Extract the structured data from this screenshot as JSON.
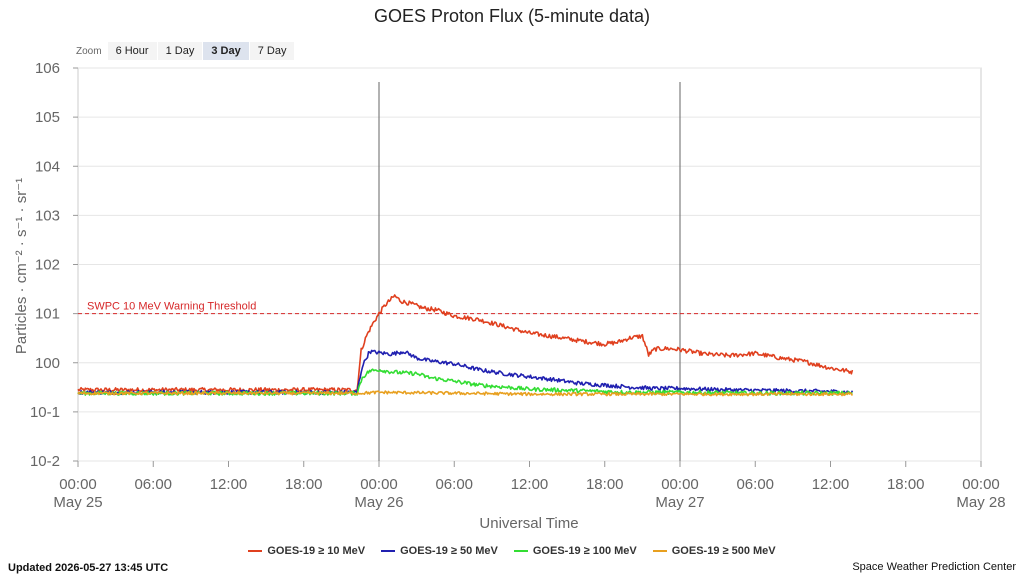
{
  "title": "GOES Proton Flux (5-minute data)",
  "zoom": {
    "label": "Zoom",
    "options": [
      "6 Hour",
      "1 Day",
      "3 Day",
      "7 Day"
    ],
    "selected": "3 Day"
  },
  "footer": {
    "updated": "Updated 2026-05-27 13:45 UTC",
    "credit": "Space Weather Prediction Center"
  },
  "chart_data": {
    "type": "line",
    "title": "GOES Proton Flux (5-minute data)",
    "xlabel": "Universal Time",
    "ylabel": "Particles · cm⁻² · s⁻¹ · sr⁻¹",
    "yscale": "log",
    "ylim": [
      0.01,
      1000000
    ],
    "y_ticks": [
      {
        "value": 1000000,
        "base": "10",
        "exp": "6"
      },
      {
        "value": 100000,
        "base": "10",
        "exp": "5"
      },
      {
        "value": 10000,
        "base": "10",
        "exp": "4"
      },
      {
        "value": 1000,
        "base": "10",
        "exp": "3"
      },
      {
        "value": 100,
        "base": "10",
        "exp": "2"
      },
      {
        "value": 10,
        "base": "10",
        "exp": "1"
      },
      {
        "value": 1,
        "base": "10",
        "exp": "0"
      },
      {
        "value": 0.1,
        "base": "10",
        "exp": "-1"
      },
      {
        "value": 0.01,
        "base": "10",
        "exp": "-2"
      }
    ],
    "xlim": [
      "2026-05-25 00:00",
      "2026-05-28 00:00"
    ],
    "x_ticks": [
      {
        "time": "2026-05-25 00:00",
        "label": "00:00",
        "date": "May 25"
      },
      {
        "time": "2026-05-25 06:00",
        "label": "06:00",
        "date": ""
      },
      {
        "time": "2026-05-25 12:00",
        "label": "12:00",
        "date": ""
      },
      {
        "time": "2026-05-25 18:00",
        "label": "18:00",
        "date": ""
      },
      {
        "time": "2026-05-26 00:00",
        "label": "00:00",
        "date": "May 26"
      },
      {
        "time": "2026-05-26 06:00",
        "label": "06:00",
        "date": ""
      },
      {
        "time": "2026-05-26 12:00",
        "label": "12:00",
        "date": ""
      },
      {
        "time": "2026-05-26 18:00",
        "label": "18:00",
        "date": ""
      },
      {
        "time": "2026-05-27 00:00",
        "label": "00:00",
        "date": "May 27"
      },
      {
        "time": "2026-05-27 06:00",
        "label": "06:00",
        "date": ""
      },
      {
        "time": "2026-05-27 12:00",
        "label": "12:00",
        "date": ""
      },
      {
        "time": "2026-05-27 18:00",
        "label": "18:00",
        "date": ""
      },
      {
        "time": "2026-05-28 00:00",
        "label": "00:00",
        "date": "May 28"
      }
    ],
    "day_lines": [
      "2026-05-26 00:00",
      "2026-05-27 00:00"
    ],
    "threshold": {
      "label": "SWPC 10 MeV Warning Threshold",
      "value": 10,
      "color": "#d62728"
    },
    "grid": true,
    "legend_position": "bottom",
    "series": [
      {
        "name": "GOES-19 ≥ 10 MeV",
        "color": "#e0401f",
        "noise": 0.045,
        "x": [
          "2026-05-25 00:00",
          "2026-05-25 22:15",
          "2026-05-25 22:35",
          "2026-05-25 23:00",
          "2026-05-25 23:30",
          "2026-05-26 00:00",
          "2026-05-26 00:30",
          "2026-05-26 01:00",
          "2026-05-26 01:15",
          "2026-05-26 01:45",
          "2026-05-26 02:30",
          "2026-05-26 03:30",
          "2026-05-26 04:30",
          "2026-05-26 06:00",
          "2026-05-26 08:00",
          "2026-05-26 10:00",
          "2026-05-26 12:00",
          "2026-05-26 14:00",
          "2026-05-26 16:00",
          "2026-05-26 18:00",
          "2026-05-26 19:00",
          "2026-05-26 20:00",
          "2026-05-26 21:00",
          "2026-05-26 21:30",
          "2026-05-26 22:00",
          "2026-05-26 23:00",
          "2026-05-27 00:00",
          "2026-05-27 02:00",
          "2026-05-27 04:00",
          "2026-05-27 06:00",
          "2026-05-27 08:00",
          "2026-05-27 10:00",
          "2026-05-27 12:00",
          "2026-05-27 13:45"
        ],
        "values": [
          0.28,
          0.28,
          1.8,
          3.5,
          6.2,
          10,
          15,
          20,
          23,
          18,
          16,
          13,
          12,
          9,
          7.5,
          5.5,
          4,
          3.4,
          2.8,
          2.4,
          2.6,
          3.2,
          3.5,
          1.45,
          1.9,
          1.95,
          1.85,
          1.5,
          1.4,
          1.55,
          1.25,
          1.05,
          0.78,
          0.65
        ]
      },
      {
        "name": "GOES-19 ≥ 50 MeV",
        "color": "#2020b0",
        "noise": 0.04,
        "x": [
          "2026-05-25 00:00",
          "2026-05-25 22:15",
          "2026-05-25 22:40",
          "2026-05-25 23:15",
          "2026-05-26 00:00",
          "2026-05-26 01:00",
          "2026-05-26 02:00",
          "2026-05-26 03:00",
          "2026-05-26 04:00",
          "2026-05-26 06:00",
          "2026-05-26 08:00",
          "2026-05-26 10:00",
          "2026-05-26 12:00",
          "2026-05-26 14:00",
          "2026-05-26 16:00",
          "2026-05-26 18:00",
          "2026-05-26 20:00",
          "2026-05-26 22:00",
          "2026-05-27 00:00",
          "2026-05-27 04:00",
          "2026-05-27 08:00",
          "2026-05-27 12:00",
          "2026-05-27 13:45"
        ],
        "values": [
          0.25,
          0.25,
          0.85,
          1.7,
          1.6,
          1.5,
          1.7,
          1.25,
          1.1,
          0.95,
          0.72,
          0.6,
          0.52,
          0.45,
          0.38,
          0.35,
          0.32,
          0.3,
          0.3,
          0.28,
          0.27,
          0.26,
          0.25
        ]
      },
      {
        "name": "GOES-19 ≥ 100 MeV",
        "color": "#33dd33",
        "noise": 0.04,
        "x": [
          "2026-05-25 00:00",
          "2026-05-25 22:15",
          "2026-05-25 22:40",
          "2026-05-25 23:15",
          "2026-05-26 00:00",
          "2026-05-26 01:00",
          "2026-05-26 02:00",
          "2026-05-26 03:00",
          "2026-05-26 04:00",
          "2026-05-26 06:00",
          "2026-05-26 08:00",
          "2026-05-26 10:00",
          "2026-05-26 12:00",
          "2026-05-26 16:00",
          "2026-05-26 20:00",
          "2026-05-27 00:00",
          "2026-05-27 06:00",
          "2026-05-27 13:45"
        ],
        "values": [
          0.24,
          0.24,
          0.5,
          0.68,
          0.72,
          0.65,
          0.62,
          0.6,
          0.5,
          0.42,
          0.35,
          0.32,
          0.29,
          0.27,
          0.25,
          0.25,
          0.24,
          0.24
        ]
      },
      {
        "name": "GOES-19 ≥ 500 MeV",
        "color": "#e8a020",
        "noise": 0.03,
        "x": [
          "2026-05-25 00:00",
          "2026-05-25 22:30",
          "2026-05-26 00:00",
          "2026-05-26 06:00",
          "2026-05-26 12:00",
          "2026-05-26 18:00",
          "2026-05-27 00:00",
          "2026-05-27 13:45"
        ],
        "values": [
          0.24,
          0.24,
          0.25,
          0.24,
          0.23,
          0.23,
          0.23,
          0.23
        ]
      }
    ]
  }
}
